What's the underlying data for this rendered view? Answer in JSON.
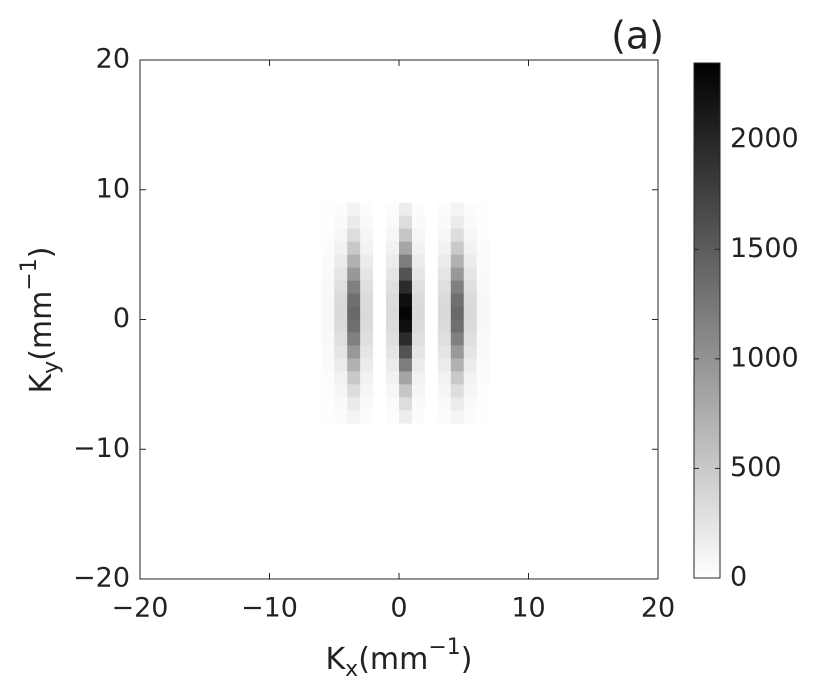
{
  "chart_data": {
    "type": "heatmap",
    "title": "(a)",
    "xlabel": {
      "base": "K",
      "sub": "x",
      "unit": "(mm",
      "sup": "−1",
      "end": ")"
    },
    "ylabel": {
      "base": "K",
      "sub": "y",
      "unit": "(mm",
      "sup": "−1",
      "end": ")"
    },
    "xlim": [
      -20,
      20
    ],
    "ylim": [
      -20,
      20
    ],
    "xticks": [
      {
        "value": -20,
        "label": "−20"
      },
      {
        "value": -10,
        "label": "−10"
      },
      0,
      10,
      20
    ],
    "yticks": [
      {
        "value": -20,
        "label": "−20"
      },
      {
        "value": -10,
        "label": "−10"
      },
      0,
      10,
      20
    ],
    "colormap": "gray-reversed",
    "clim": [
      0,
      2350
    ],
    "cticks": [
      0,
      500,
      1000,
      1500,
      2000
    ],
    "x": [
      -5.5,
      -4.5,
      -3.5,
      -2.5,
      -1.5,
      -0.5,
      0.5,
      1.5,
      2.5,
      3.5,
      4.5,
      5.5,
      6.5
    ],
    "y": [
      8.5,
      7.5,
      6.5,
      5.5,
      4.5,
      3.5,
      2.5,
      1.5,
      0.5,
      -0.5,
      -1.5,
      -2.5,
      -3.5,
      -4.5,
      -5.5,
      -6.5,
      -7.5
    ],
    "z": [
      [
        5,
        25,
        101,
        25,
        0,
        25,
        168,
        25,
        0,
        25,
        101,
        25,
        5
      ],
      [
        9,
        47,
        186,
        47,
        0,
        47,
        311,
        47,
        0,
        47,
        186,
        47,
        9
      ],
      [
        16,
        79,
        317,
        79,
        0,
        79,
        529,
        79,
        0,
        79,
        317,
        79,
        16
      ],
      [
        25,
        124,
        497,
        124,
        0,
        124,
        828,
        124,
        0,
        124,
        497,
        124,
        25
      ],
      [
        36,
        179,
        718,
        179,
        0,
        179,
        1196,
        179,
        0,
        179,
        718,
        179,
        36
      ],
      [
        48,
        238,
        952,
        238,
        0,
        238,
        1587,
        238,
        0,
        238,
        952,
        238,
        48
      ],
      [
        59,
        293,
        1173,
        293,
        0,
        293,
        1955,
        293,
        0,
        293,
        1173,
        293,
        59
      ],
      [
        66,
        331,
        1325,
        331,
        0,
        331,
        2208,
        331,
        0,
        331,
        1325,
        331,
        66
      ],
      [
        69,
        345,
        1380,
        345,
        0,
        345,
        2300,
        345,
        0,
        345,
        1380,
        345,
        69
      ],
      [
        66,
        331,
        1325,
        331,
        0,
        331,
        2208,
        331,
        0,
        331,
        1325,
        331,
        66
      ],
      [
        59,
        293,
        1173,
        293,
        0,
        293,
        1955,
        293,
        0,
        293,
        1173,
        293,
        59
      ],
      [
        48,
        238,
        952,
        238,
        0,
        238,
        1587,
        238,
        0,
        238,
        952,
        238,
        48
      ],
      [
        36,
        179,
        718,
        179,
        0,
        179,
        1196,
        179,
        0,
        179,
        718,
        179,
        36
      ],
      [
        25,
        124,
        497,
        124,
        0,
        124,
        828,
        124,
        0,
        124,
        497,
        124,
        25
      ],
      [
        16,
        79,
        317,
        79,
        0,
        79,
        529,
        79,
        0,
        79,
        317,
        79,
        16
      ],
      [
        9,
        47,
        186,
        47,
        0,
        47,
        311,
        47,
        0,
        47,
        186,
        47,
        9
      ],
      [
        5,
        25,
        101,
        25,
        0,
        25,
        168,
        25,
        0,
        25,
        101,
        25,
        5
      ]
    ]
  }
}
